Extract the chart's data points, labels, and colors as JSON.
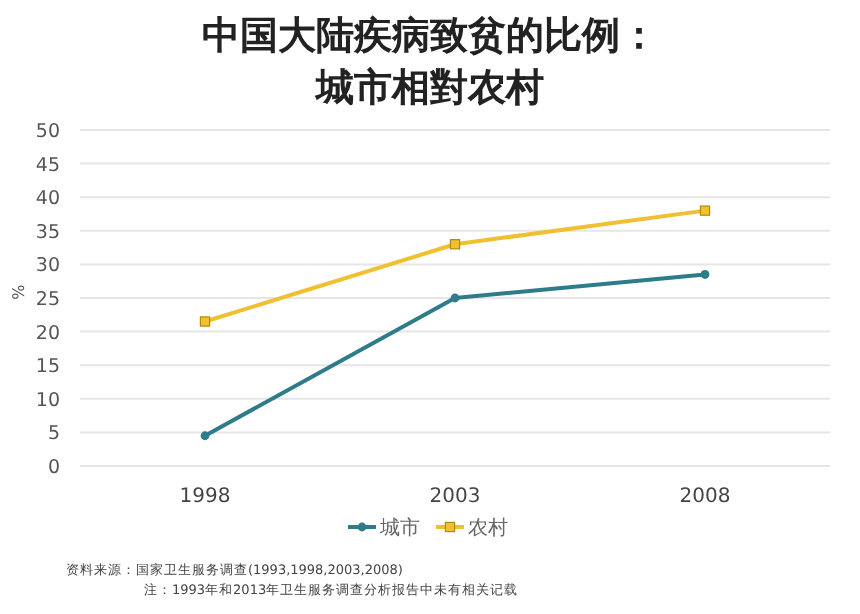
{
  "chart_data": {
    "type": "line",
    "title": "中国大陆疾病致贫的比例：",
    "subtitle": "城市相對农村",
    "ylabel": "%",
    "categories": [
      "1998",
      "2003",
      "2008"
    ],
    "series": [
      {
        "name": "城市",
        "color": "#2e7b8a",
        "values": [
          4.5,
          25,
          28.5
        ],
        "marker": "circle"
      },
      {
        "name": "农村",
        "color": "#f0c030",
        "values": [
          21.5,
          33,
          38
        ],
        "marker": "square"
      }
    ],
    "ylim": [
      0,
      50
    ],
    "yticks": [
      0,
      5,
      10,
      15,
      20,
      25,
      30,
      35,
      40,
      45,
      50
    ],
    "grid": "y",
    "legend": "bottom",
    "annotations": [
      "资料来源：国家卫生服务调查(1993,1998,2003,2008)",
      "注：1993年和2013年卫生服务调查分析报告中未有相关记载"
    ]
  }
}
